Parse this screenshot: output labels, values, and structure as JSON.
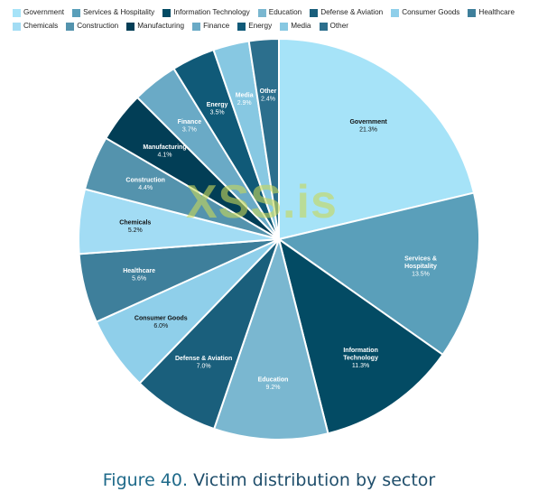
{
  "chart_data": {
    "type": "pie",
    "title": "",
    "slices": [
      {
        "label": "Government",
        "value": 21.3,
        "display": "21.3%",
        "color": "#a6e3f8",
        "label_color": "#111111"
      },
      {
        "label": "Services & Hospitality",
        "value": 13.5,
        "display": "13.5%",
        "color": "#5a9fba",
        "label_color": "#ffffff"
      },
      {
        "label": "Information Technology",
        "value": 11.3,
        "display": "11.3%",
        "color": "#034b64",
        "label_color": "#ffffff"
      },
      {
        "label": "Education",
        "value": 9.2,
        "display": "9.2%",
        "color": "#7ab7d0",
        "label_color": "#ffffff"
      },
      {
        "label": "Defense & Aviation",
        "value": 7.0,
        "display": "7.0%",
        "color": "#1a5f7c",
        "label_color": "#ffffff"
      },
      {
        "label": "Consumer Goods",
        "value": 6.0,
        "display": "6.0%",
        "color": "#8fcfea",
        "label_color": "#111111"
      },
      {
        "label": "Healthcare",
        "value": 5.6,
        "display": "5.6%",
        "color": "#3e7f9b",
        "label_color": "#ffffff"
      },
      {
        "label": "Chemicals",
        "value": 5.2,
        "display": "5.2%",
        "color": "#a2dcf4",
        "label_color": "#111111"
      },
      {
        "label": "Construction",
        "value": 4.4,
        "display": "4.4%",
        "color": "#5493ad",
        "label_color": "#ffffff"
      },
      {
        "label": "Manufacturing",
        "value": 4.1,
        "display": "4.1%",
        "color": "#023e56",
        "label_color": "#ffffff"
      },
      {
        "label": "Finance",
        "value": 3.7,
        "display": "3.7%",
        "color": "#6aaac6",
        "label_color": "#ffffff"
      },
      {
        "label": "Energy",
        "value": 3.5,
        "display": "3.5%",
        "color": "#105a78",
        "label_color": "#ffffff"
      },
      {
        "label": "Media",
        "value": 2.9,
        "display": "2.9%",
        "color": "#87c8e2",
        "label_color": "#ffffff"
      },
      {
        "label": "Other",
        "value": 2.4,
        "display": "2.4%",
        "color": "#2c6f8d",
        "label_color": "#ffffff"
      }
    ],
    "legend_position": "top",
    "start": "12 o'clock, clockwise"
  },
  "watermark": "XSS.is",
  "caption": {
    "figure": "Figure 40.",
    "text": " Victim distribution by sector"
  }
}
